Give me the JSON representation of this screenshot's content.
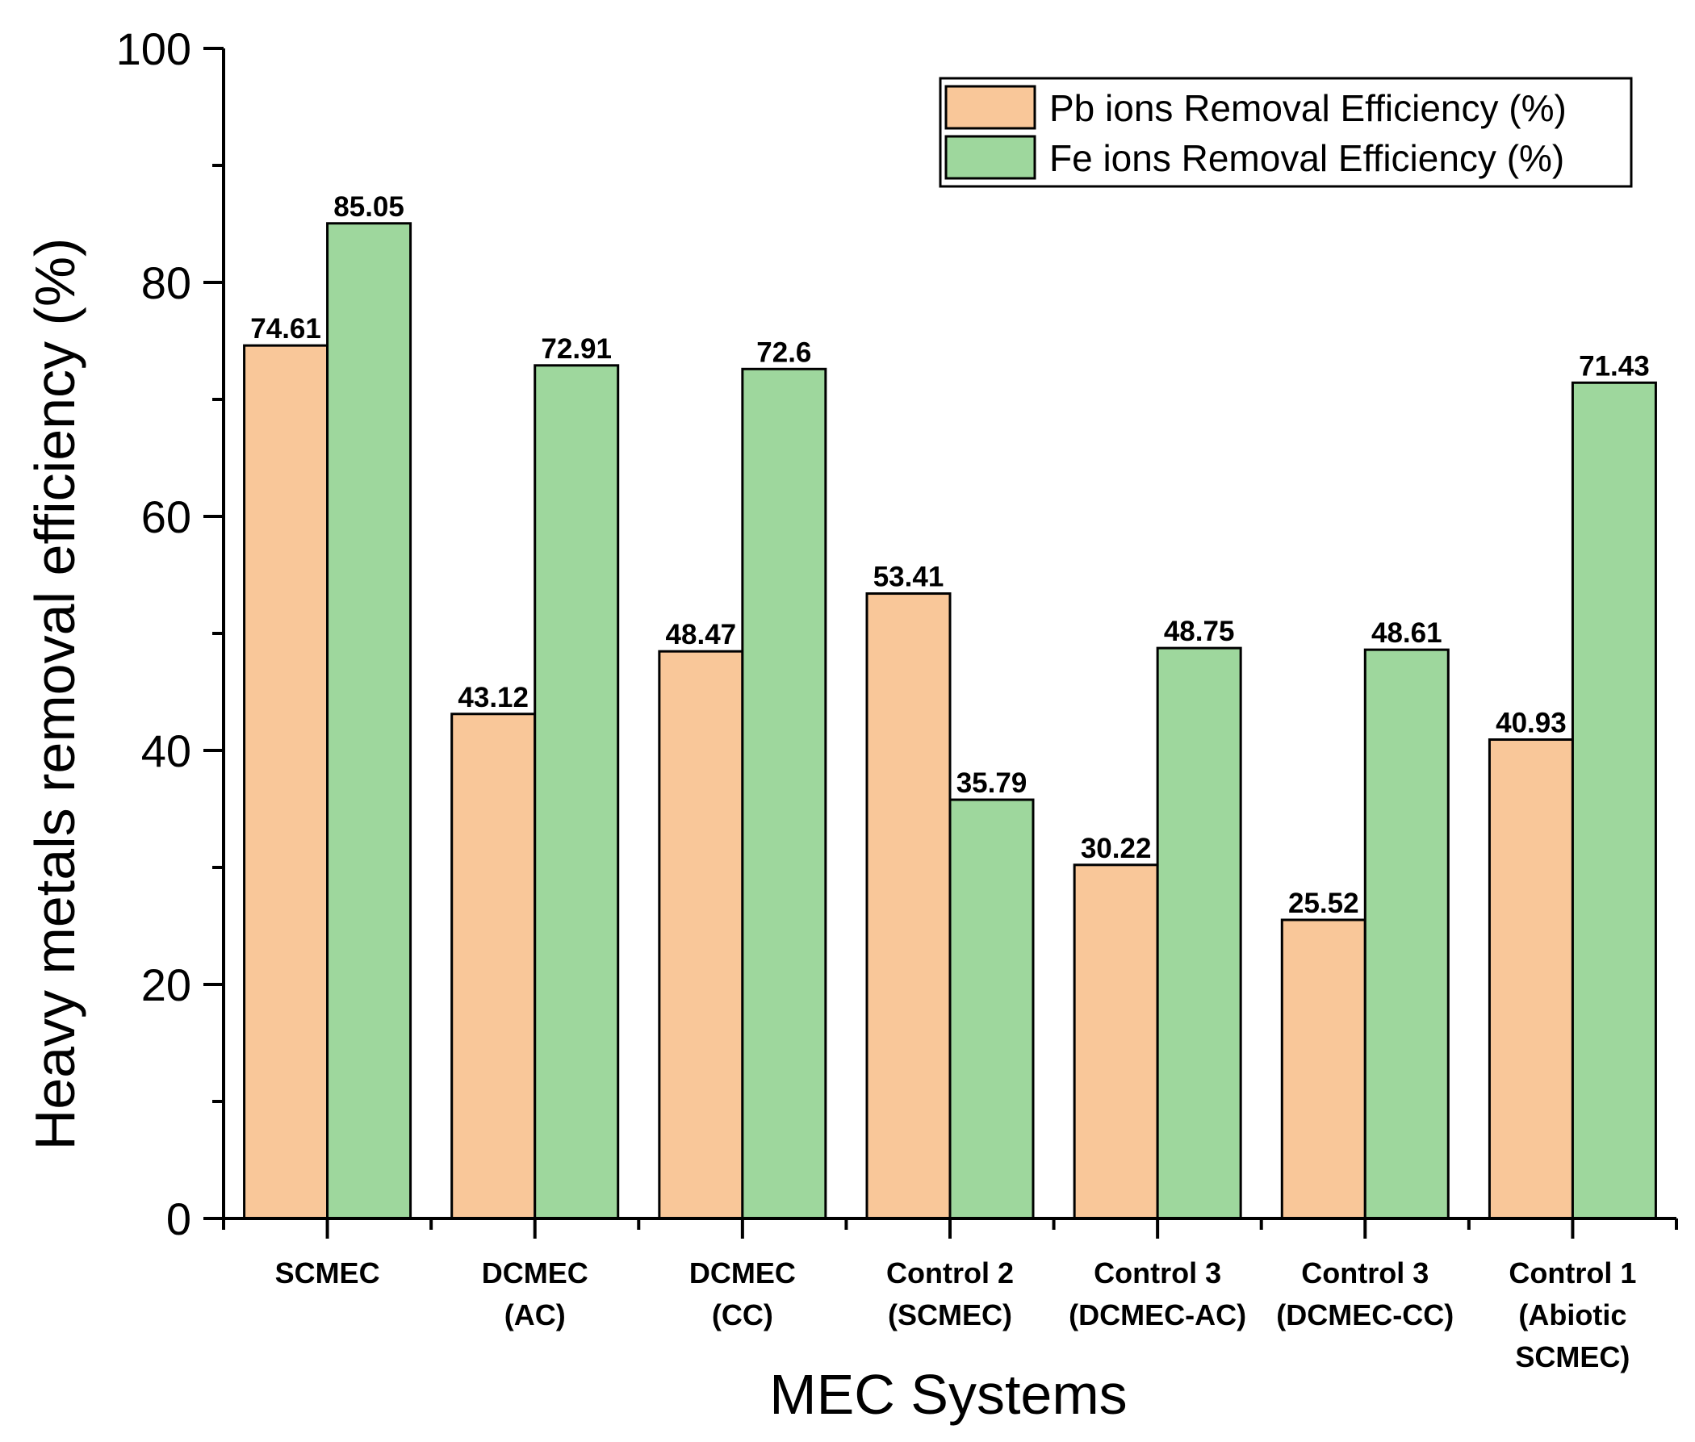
{
  "chart_data": {
    "type": "bar",
    "title": "",
    "xlabel": "MEC Systems",
    "ylabel": "Heavy metals removal efficiency (%)",
    "ylim": [
      0,
      100
    ],
    "yticks": [
      0,
      20,
      40,
      60,
      80,
      100
    ],
    "categories": [
      [
        "SCMEC"
      ],
      [
        "DCMEC",
        "(AC)"
      ],
      [
        "DCMEC",
        "(CC)"
      ],
      [
        "Control 2",
        "(SCMEC)"
      ],
      [
        "Control 3",
        "(DCMEC-AC)"
      ],
      [
        "Control 3",
        "(DCMEC-CC)"
      ],
      [
        "Control 1",
        "(Abiotic",
        "SCMEC)"
      ]
    ],
    "series": [
      {
        "name": "Pb ions Removal Efficiency (%)",
        "color": "#f9c799",
        "values": [
          74.61,
          43.12,
          48.47,
          53.41,
          30.22,
          25.52,
          40.93
        ],
        "labels": [
          "74.61",
          "43.12",
          "48.47",
          "53.41",
          "30.22",
          "25.52",
          "40.93"
        ]
      },
      {
        "name": "Fe ions Removal Efficiency (%)",
        "color": "#9ed79d",
        "values": [
          85.05,
          72.91,
          72.6,
          35.79,
          48.75,
          48.61,
          71.43
        ],
        "labels": [
          "85.05",
          "72.91",
          "72.6",
          "35.79",
          "48.75",
          "48.61",
          "71.43"
        ]
      }
    ],
    "legend_position": "top-right",
    "grid": false
  }
}
